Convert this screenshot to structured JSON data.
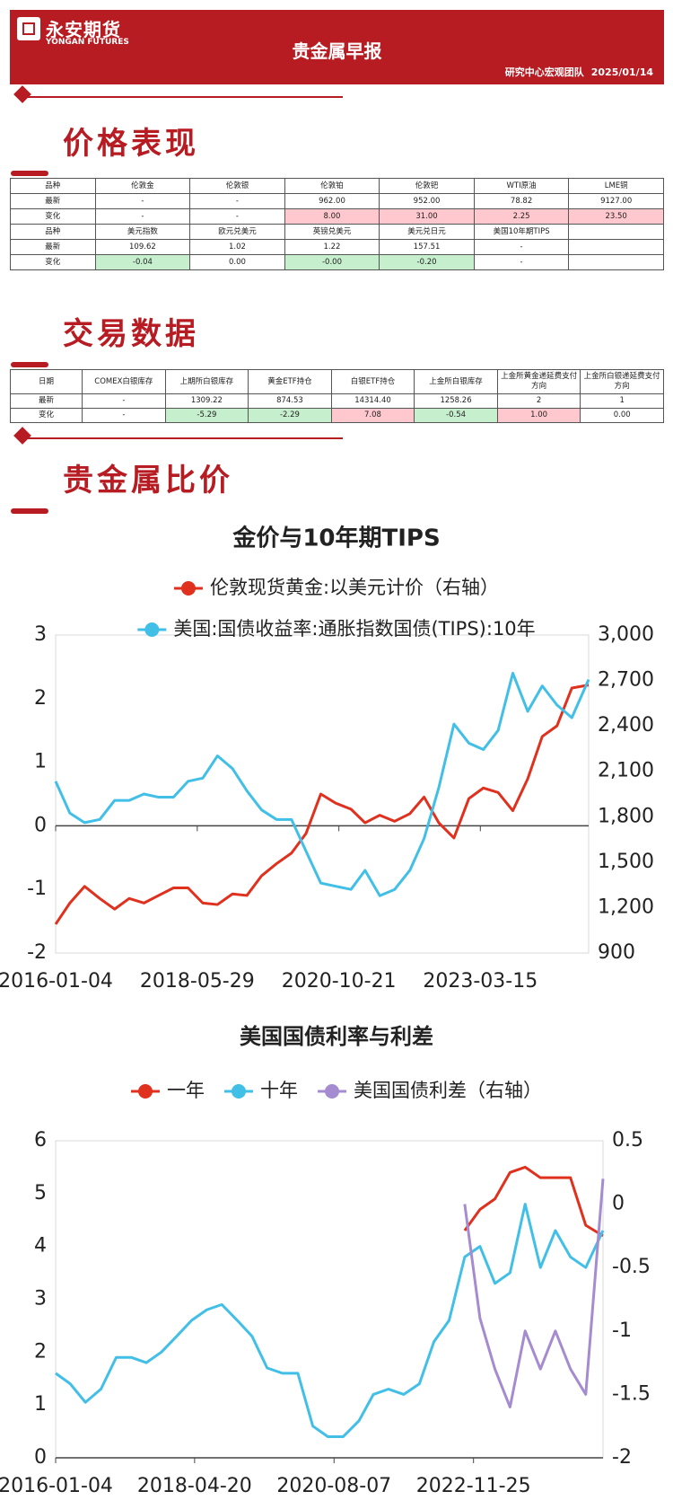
{
  "header": {
    "logo": "永安期货",
    "logo_en": "YONGAN FUTURES",
    "title": "贵金属早报",
    "team": "研究中心宏观团队",
    "date": "2025/01/14"
  },
  "sections": [
    "价格表现",
    "交易数据",
    "贵金属比价"
  ],
  "price_table": {
    "rows": [
      [
        "品种",
        "伦敦金",
        "伦敦银",
        "伦敦铂",
        "伦敦钯",
        "WTI原油",
        "LME铜"
      ],
      [
        "最新",
        "-",
        "-",
        "962.00",
        "952.00",
        "78.82",
        "9127.00"
      ],
      [
        "变化",
        "-",
        "-",
        "8.00",
        "31.00",
        "2.25",
        "23.50"
      ],
      [
        "品种",
        "美元指数",
        "欧元兑美元",
        "英镑兑美元",
        "美元兑日元",
        "美国10年期TIPS",
        null
      ],
      [
        "最新",
        "109.62",
        "1.02",
        "1.22",
        "157.51",
        "-",
        null
      ],
      [
        "变化",
        "-0.04",
        "0.00",
        "-0.00",
        "-0.20",
        "-",
        null
      ]
    ],
    "colors": [
      [
        null,
        null,
        null,
        null,
        null,
        null,
        null
      ],
      [
        null,
        null,
        null,
        null,
        null,
        null,
        null
      ],
      [
        null,
        null,
        null,
        "#ffc7ce",
        "#ffc7ce",
        "#ffc7ce",
        "#ffc7ce"
      ],
      [
        null,
        null,
        null,
        null,
        null,
        null,
        null
      ],
      [
        null,
        null,
        null,
        null,
        null,
        null,
        null
      ],
      [
        null,
        "#c6efce",
        null,
        "#c6efce",
        "#c6efce",
        null,
        null
      ]
    ]
  },
  "trade_table": {
    "rows": [
      [
        "日期",
        "COMEX白银库存",
        "上期所白银库存",
        "黄金ETF持仓",
        "白银ETF持仓",
        "上金所白银库存",
        "上金所黄金递延费支付方向",
        "上金所白银递延费支付方向"
      ],
      [
        "最新",
        "-",
        "1309.22",
        "874.53",
        "14314.40",
        "1258.26",
        "2",
        "1"
      ],
      [
        "变化",
        "-",
        "-5.29",
        "-2.29",
        "7.08",
        "-0.54",
        "1.00",
        "0.00"
      ]
    ],
    "colors": [
      [
        null,
        null,
        null,
        null,
        null,
        null,
        null,
        null
      ],
      [
        null,
        null,
        null,
        null,
        null,
        null,
        null,
        null
      ],
      [
        null,
        null,
        "#c6efce",
        "#c6efce",
        "#ffc7ce",
        "#c6efce",
        "#ffc7ce",
        null
      ]
    ]
  },
  "chart_data": [
    {
      "type": "line",
      "title": "金价与10年期TIPS",
      "legend": "top",
      "x": [
        "2016-01-04",
        "2016-04-01",
        "2016-07-01",
        "2016-10-03",
        "2017-01-03",
        "2017-04-03",
        "2017-07-03",
        "2017-10-02",
        "2018-01-02",
        "2018-04-02",
        "2018-07-02",
        "2018-10-01",
        "2019-01-02",
        "2019-04-01",
        "2019-07-01",
        "2019-10-01",
        "2020-01-02",
        "2020-04-01",
        "2020-07-01",
        "2020-10-01",
        "2021-01-04",
        "2021-04-01",
        "2021-07-01",
        "2021-10-01",
        "2022-01-03",
        "2022-04-01",
        "2022-07-01",
        "2022-10-03",
        "2023-01-03",
        "2023-04-03",
        "2023-07-03",
        "2023-10-02",
        "2024-01-02",
        "2024-04-01",
        "2024-07-01",
        "2024-10-01",
        "2025-01-13"
      ],
      "xlim": [
        "2016-01-04",
        "2025-01-13"
      ],
      "xticks": [
        "2016-01-04",
        "2018-05-29",
        "2020-10-21",
        "2023-03-15"
      ],
      "ylim": [
        -2,
        3
      ],
      "yticks": [
        -2,
        -1,
        0,
        1,
        2,
        3
      ],
      "y2lim": [
        900,
        3000
      ],
      "y2ticks": [
        900,
        {
          "value": 1200,
          "label": "1,200"
        },
        {
          "value": 1500,
          "label": "1,500"
        },
        {
          "value": 1800,
          "label": "1,800"
        },
        {
          "value": 2100,
          "label": "2,100"
        },
        {
          "value": 2400,
          "label": "2,400"
        },
        {
          "value": 2700,
          "label": "2,700"
        },
        {
          "value": 3000,
          "label": "3,000"
        }
      ],
      "grid": false,
      "series": [
        {
          "name": "伦敦现货黄金:以美元计价（右轴）",
          "color": "#e0301e",
          "axis": "y2",
          "values": [
            1090,
            1230,
            1340,
            1260,
            1190,
            1260,
            1230,
            1280,
            1330,
            1330,
            1230,
            1220,
            1290,
            1280,
            1410,
            1490,
            1560,
            1690,
            1950,
            1890,
            1850,
            1760,
            1810,
            1770,
            1820,
            1930,
            1760,
            1660,
            1920,
            1990,
            1960,
            1840,
            2050,
            2330,
            2400,
            2650,
            2670
          ]
        },
        {
          "name": "美国:国债收益率:通胀指数国债(TIPS):10年",
          "color": "#41bfe6",
          "values": [
            0.7,
            0.2,
            0.05,
            0.1,
            0.4,
            0.4,
            0.5,
            0.45,
            0.45,
            0.7,
            0.75,
            1.1,
            0.9,
            0.55,
            0.25,
            0.1,
            0.1,
            -0.4,
            -0.9,
            -0.95,
            -1.0,
            -0.7,
            -1.1,
            -1.0,
            -0.7,
            -0.2,
            0.6,
            1.6,
            1.3,
            1.2,
            1.5,
            2.4,
            1.8,
            2.2,
            1.9,
            1.7,
            2.3
          ]
        }
      ]
    },
    {
      "type": "line",
      "title": "美国国债利率与利差",
      "legend": "top",
      "x": [
        "2016-01-04",
        "2016-04-01",
        "2016-07-01",
        "2016-10-03",
        "2017-01-03",
        "2017-04-03",
        "2017-07-03",
        "2017-10-02",
        "2018-01-02",
        "2018-04-02",
        "2018-07-02",
        "2018-10-01",
        "2019-01-02",
        "2019-04-01",
        "2019-07-01",
        "2019-10-01",
        "2020-01-02",
        "2020-04-01",
        "2020-07-01",
        "2020-10-01",
        "2021-01-04",
        "2021-04-01",
        "2021-07-01",
        "2021-10-01",
        "2022-01-03",
        "2022-04-01",
        "2022-07-01",
        "2022-10-03",
        "2023-01-03",
        "2023-04-03",
        "2023-07-03",
        "2023-10-02",
        "2024-01-02",
        "2024-04-01",
        "2024-07-01",
        "2024-10-01",
        "2025-01-13"
      ],
      "xlim": [
        "2016-01-04",
        "2025-01-13"
      ],
      "xticks": [
        "2016-01-04",
        "2018-04-20",
        "2020-08-07",
        "2022-11-25"
      ],
      "ylim": [
        0,
        6
      ],
      "yticks": [
        0,
        1,
        2,
        3,
        4,
        5,
        6
      ],
      "y2lim": [
        -2,
        0.5
      ],
      "y2ticks": [
        -2,
        -1.5,
        -1,
        -0.5,
        0,
        0.5
      ],
      "grid": false,
      "series": [
        {
          "name": "一年",
          "color": "#e0301e",
          "values": [
            null,
            null,
            null,
            null,
            null,
            null,
            null,
            null,
            null,
            null,
            null,
            null,
            null,
            null,
            null,
            null,
            null,
            null,
            null,
            null,
            null,
            null,
            null,
            null,
            null,
            null,
            null,
            4.3,
            4.7,
            4.9,
            5.4,
            5.5,
            5.3,
            5.3,
            5.3,
            4.4,
            4.2
          ]
        },
        {
          "name": "十年",
          "color": "#41bfe6",
          "values": [
            1.6,
            1.4,
            1.05,
            1.3,
            1.9,
            1.9,
            1.8,
            2.0,
            2.3,
            2.6,
            2.8,
            2.9,
            2.6,
            2.3,
            1.7,
            1.6,
            1.6,
            0.6,
            0.4,
            0.4,
            0.7,
            1.2,
            1.3,
            1.2,
            1.4,
            2.2,
            2.6,
            3.8,
            4.0,
            3.3,
            3.5,
            4.8,
            3.6,
            4.3,
            3.8,
            3.6,
            4.3
          ]
        },
        {
          "name": "美国国债利差（右轴）",
          "color": "#a58bd0",
          "axis": "y2",
          "values": [
            null,
            null,
            null,
            null,
            null,
            null,
            null,
            null,
            null,
            null,
            null,
            null,
            null,
            null,
            null,
            null,
            null,
            null,
            null,
            null,
            null,
            null,
            null,
            null,
            null,
            null,
            null,
            0.0,
            -0.9,
            -1.3,
            -1.6,
            -1.0,
            -1.3,
            -1.0,
            -1.3,
            -1.5,
            0.2
          ]
        }
      ]
    }
  ]
}
